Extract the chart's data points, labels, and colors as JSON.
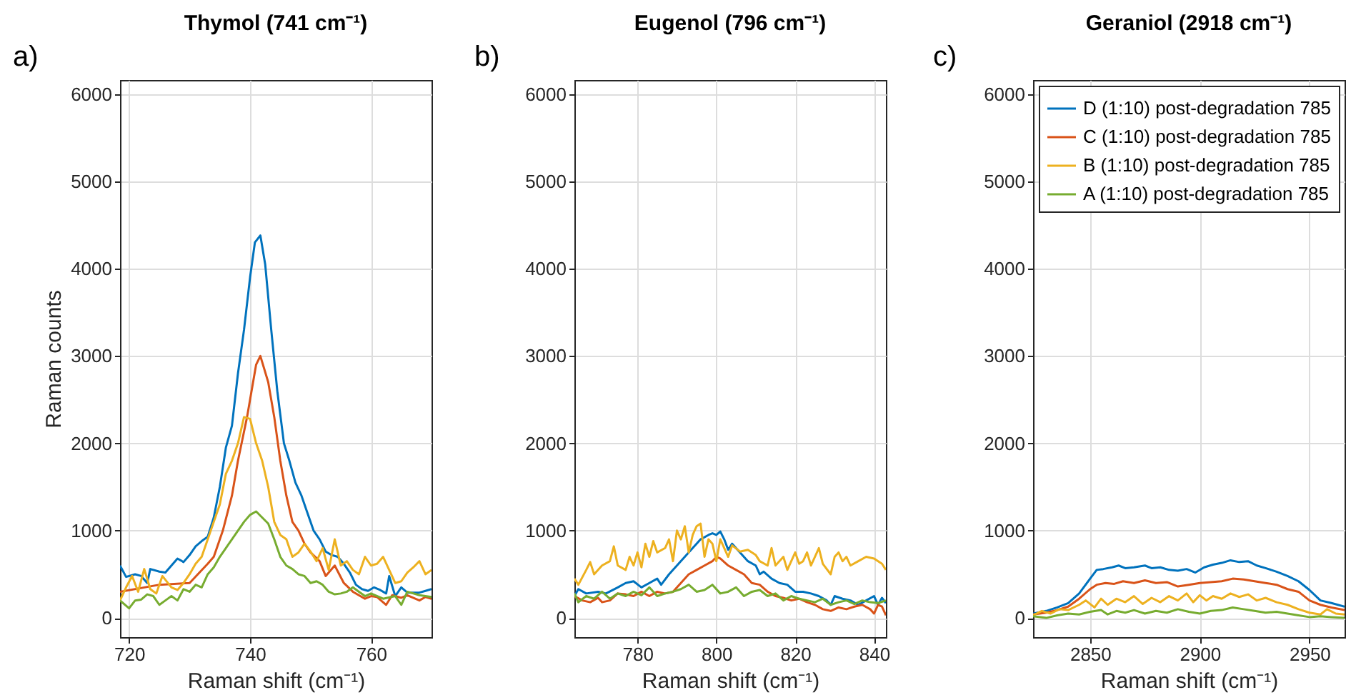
{
  "chart_data": [
    {
      "type": "line",
      "title": "Thymol (741 cm⁻¹)",
      "xlabel": "Raman shift (cm⁻¹)",
      "ylabel": "Raman counts",
      "annotations": [
        "a)"
      ],
      "xlim": [
        718.5,
        770
      ],
      "ylim": [
        -220,
        6160
      ],
      "xticks": [
        720,
        740,
        760
      ],
      "yticks": [
        0,
        1000,
        2000,
        3000,
        4000,
        5000,
        6000
      ],
      "grid": true,
      "series": [
        {
          "color": "#0072bd",
          "x": [
            718.5,
            719.5,
            721,
            722,
            723,
            723.5,
            725,
            726,
            727,
            728,
            729,
            730,
            731,
            732,
            733,
            734,
            735,
            736,
            737,
            738,
            739,
            740,
            740.8,
            741.7,
            742.5,
            743.5,
            744.5,
            745.6,
            746.5,
            747.5,
            748.5,
            749.5,
            750.5,
            751.5,
            752.5,
            753.5,
            754.5,
            755.5,
            756.5,
            757.5,
            758.5,
            759.5,
            760.5,
            761.5,
            762.5,
            763,
            764,
            765,
            766,
            768,
            769,
            770
          ],
          "values": [
            600,
            470,
            500,
            480,
            400,
            560,
            530,
            520,
            600,
            680,
            640,
            720,
            820,
            880,
            930,
            1150,
            1500,
            1950,
            2200,
            2800,
            3300,
            3900,
            4300,
            4380,
            4050,
            3300,
            2600,
            2000,
            1800,
            1550,
            1400,
            1200,
            1000,
            900,
            760,
            720,
            700,
            620,
            520,
            380,
            330,
            310,
            350,
            320,
            280,
            480,
            250,
            350,
            290,
            290,
            310,
            330
          ]
        },
        {
          "color": "#d95319",
          "x": [
            718.5,
            725,
            730,
            733,
            734,
            735.5,
            737,
            738,
            739.5,
            741,
            741.7,
            743,
            744,
            745,
            746,
            747,
            748,
            749,
            750,
            751.5,
            752.5,
            754,
            755.5,
            757,
            759,
            760,
            761,
            762.5,
            763.5,
            765,
            766,
            768,
            769,
            770
          ],
          "values": [
            300,
            380,
            400,
            620,
            700,
            1000,
            1400,
            1800,
            2300,
            2900,
            3000,
            2700,
            2300,
            1800,
            1400,
            1100,
            1000,
            850,
            750,
            650,
            480,
            600,
            400,
            300,
            220,
            250,
            240,
            150,
            260,
            230,
            260,
            200,
            240,
            220
          ]
        },
        {
          "color": "#edb120",
          "x": [
            718.5,
            719.5,
            720.5,
            721.5,
            722.5,
            723.5,
            724.5,
            725.5,
            727,
            728,
            729,
            730,
            731,
            732,
            733,
            734,
            735,
            736,
            737,
            738,
            739,
            740,
            741,
            742,
            743,
            744,
            745,
            746,
            747,
            748,
            749,
            750,
            751,
            752,
            753,
            754,
            755,
            756,
            757,
            758,
            759,
            760,
            761,
            762,
            763,
            764,
            765,
            766,
            767,
            768,
            769,
            770
          ],
          "values": [
            200,
            350,
            480,
            300,
            560,
            330,
            280,
            480,
            350,
            320,
            400,
            500,
            620,
            700,
            900,
            1100,
            1300,
            1650,
            1800,
            2000,
            2300,
            2280,
            2000,
            1800,
            1500,
            1100,
            950,
            900,
            700,
            750,
            850,
            760,
            650,
            800,
            550,
            900,
            600,
            650,
            550,
            500,
            700,
            600,
            620,
            700,
            550,
            400,
            420,
            520,
            580,
            650,
            500,
            550
          ]
        },
        {
          "color": "#77ac30",
          "x": [
            718.5,
            720,
            721,
            722,
            723,
            724,
            725,
            726,
            727,
            728,
            729,
            730,
            731,
            732,
            733,
            734,
            735,
            736,
            737,
            738,
            739,
            740,
            741,
            742,
            743,
            744,
            745,
            746,
            747,
            748,
            749,
            750,
            751,
            752,
            753,
            754,
            755,
            756,
            757,
            758,
            759,
            760,
            762,
            764,
            765,
            766,
            768,
            770
          ],
          "values": [
            200,
            110,
            200,
            210,
            270,
            250,
            150,
            200,
            250,
            200,
            330,
            300,
            380,
            350,
            500,
            580,
            700,
            800,
            900,
            1000,
            1100,
            1180,
            1220,
            1150,
            1080,
            900,
            700,
            600,
            560,
            500,
            480,
            400,
            420,
            380,
            300,
            270,
            280,
            300,
            350,
            300,
            250,
            280,
            220,
            250,
            150,
            300,
            260,
            240
          ]
        }
      ]
    },
    {
      "type": "line",
      "title": "Eugenol (796 cm⁻¹)",
      "xlabel": "Raman shift (cm⁻¹)",
      "annotations": [
        "b)"
      ],
      "xlim": [
        764,
        843
      ],
      "ylim": [
        -220,
        6160
      ],
      "xticks": [
        780,
        800,
        820,
        840
      ],
      "yticks": [
        0,
        1000,
        2000,
        3000,
        4000,
        5000,
        6000
      ],
      "grid": true,
      "series": [
        {
          "color": "#0072bd",
          "x": [
            764,
            765,
            767,
            770,
            772,
            775,
            777,
            779,
            781,
            783,
            785,
            786,
            788,
            790,
            792,
            794,
            796,
            798,
            799,
            800,
            801,
            802,
            803,
            804,
            806,
            808,
            810,
            811,
            812,
            814,
            816,
            818,
            820,
            822,
            824,
            826,
            828,
            829,
            830,
            832,
            834,
            836,
            838,
            840,
            841,
            842,
            843
          ],
          "values": [
            250,
            330,
            280,
            300,
            280,
            350,
            400,
            420,
            350,
            400,
            450,
            380,
            500,
            600,
            700,
            800,
            900,
            950,
            970,
            950,
            990,
            900,
            780,
            850,
            750,
            650,
            600,
            500,
            530,
            450,
            400,
            380,
            300,
            300,
            280,
            250,
            200,
            150,
            250,
            220,
            200,
            150,
            200,
            250,
            150,
            230,
            170
          ]
        },
        {
          "color": "#d95319",
          "x": [
            764,
            766,
            768,
            770,
            771,
            773,
            775,
            777,
            779,
            781,
            783,
            785,
            787,
            789,
            791,
            793,
            795,
            797,
            799,
            800,
            801,
            803,
            805,
            807,
            809,
            811,
            813,
            815,
            817,
            819,
            821,
            823,
            825,
            827,
            829,
            831,
            833,
            835,
            837,
            839,
            840,
            841,
            842,
            843
          ],
          "values": [
            250,
            200,
            180,
            230,
            180,
            200,
            280,
            270,
            250,
            300,
            250,
            300,
            280,
            300,
            400,
            500,
            550,
            600,
            650,
            700,
            680,
            600,
            550,
            500,
            400,
            380,
            300,
            250,
            230,
            200,
            220,
            180,
            150,
            100,
            80,
            120,
            100,
            130,
            150,
            100,
            50,
            150,
            130,
            30
          ]
        },
        {
          "color": "#edb120",
          "x": [
            764,
            765,
            767,
            768,
            769,
            771,
            773,
            774,
            775,
            777,
            778,
            779,
            780,
            781,
            782,
            783,
            784,
            785,
            787,
            788,
            789,
            790,
            791,
            792,
            793,
            794,
            795,
            796,
            797,
            798,
            799,
            800,
            801,
            802,
            803,
            804,
            806,
            808,
            810,
            811,
            813,
            814,
            815,
            817,
            818,
            820,
            821,
            822,
            823,
            824,
            826,
            827,
            829,
            830,
            831,
            832,
            833,
            834,
            836,
            838,
            840,
            842,
            843
          ],
          "values": [
            450,
            380,
            550,
            640,
            500,
            600,
            650,
            820,
            600,
            550,
            700,
            600,
            750,
            580,
            850,
            700,
            880,
            750,
            800,
            900,
            650,
            1000,
            900,
            1050,
            750,
            950,
            1050,
            1080,
            700,
            900,
            850,
            650,
            900,
            800,
            700,
            830,
            760,
            780,
            720,
            650,
            600,
            800,
            600,
            700,
            550,
            750,
            620,
            650,
            750,
            600,
            800,
            620,
            500,
            700,
            750,
            650,
            700,
            600,
            650,
            700,
            680,
            620,
            550
          ]
        },
        {
          "color": "#77ac30",
          "x": [
            764,
            765,
            767,
            769,
            771,
            773,
            775,
            777,
            779,
            781,
            783,
            785,
            787,
            789,
            791,
            793,
            795,
            797,
            799,
            801,
            803,
            805,
            807,
            809,
            811,
            813,
            815,
            817,
            819,
            821,
            823,
            825,
            827,
            829,
            831,
            833,
            835,
            837,
            839,
            841,
            843
          ],
          "values": [
            280,
            180,
            250,
            220,
            300,
            220,
            280,
            250,
            300,
            260,
            350,
            250,
            280,
            300,
            330,
            380,
            300,
            320,
            380,
            280,
            300,
            350,
            250,
            300,
            320,
            250,
            280,
            200,
            250,
            220,
            200,
            180,
            220,
            150,
            180,
            200,
            160,
            200,
            180,
            170,
            200
          ]
        }
      ]
    },
    {
      "type": "line",
      "title": "Geraniol (2918 cm⁻¹)",
      "xlabel": "Raman shift (cm⁻¹)",
      "annotations": [
        "c)"
      ],
      "xlim": [
        2824,
        2966
      ],
      "ylim": [
        -220,
        6160
      ],
      "xticks": [
        2850,
        2900,
        2950
      ],
      "yticks": [
        0,
        1000,
        2000,
        3000,
        4000,
        5000,
        6000
      ],
      "grid": true,
      "legend": "top right",
      "series": [
        {
          "name": "D (1:10) post-degradation 785",
          "color": "#0072bd",
          "x": [
            2824,
            2830,
            2835,
            2840,
            2845,
            2850,
            2853,
            2856,
            2860,
            2863,
            2866,
            2870,
            2875,
            2878,
            2882,
            2886,
            2890,
            2894,
            2898,
            2902,
            2906,
            2910,
            2914,
            2918,
            2922,
            2926,
            2930,
            2935,
            2940,
            2945,
            2950,
            2955,
            2960,
            2966
          ],
          "values": [
            50,
            80,
            120,
            170,
            280,
            450,
            550,
            560,
            580,
            600,
            570,
            580,
            600,
            570,
            580,
            550,
            540,
            560,
            520,
            580,
            610,
            630,
            660,
            640,
            650,
            600,
            570,
            530,
            480,
            420,
            320,
            200,
            170,
            130
          ]
        },
        {
          "name": "C (1:10) post-degradation 785",
          "color": "#d95319",
          "x": [
            2824,
            2830,
            2835,
            2840,
            2845,
            2850,
            2853,
            2857,
            2861,
            2865,
            2870,
            2875,
            2880,
            2885,
            2890,
            2895,
            2900,
            2905,
            2910,
            2915,
            2920,
            2925,
            2930,
            2935,
            2940,
            2945,
            2950,
            2955,
            2960,
            2966
          ],
          "values": [
            40,
            60,
            90,
            130,
            220,
            330,
            380,
            400,
            390,
            420,
            400,
            430,
            400,
            410,
            360,
            380,
            400,
            410,
            420,
            450,
            440,
            420,
            400,
            380,
            330,
            300,
            200,
            150,
            120,
            90
          ]
        },
        {
          "name": "B (1:10) post-degradation 785",
          "color": "#edb120",
          "x": [
            2824,
            2828,
            2832,
            2836,
            2840,
            2845,
            2848,
            2852,
            2855,
            2858,
            2862,
            2866,
            2870,
            2874,
            2878,
            2882,
            2886,
            2890,
            2894,
            2897,
            2900,
            2903,
            2906,
            2910,
            2914,
            2918,
            2922,
            2926,
            2930,
            2935,
            2940,
            2945,
            2950,
            2955,
            2958,
            2962,
            2966
          ],
          "values": [
            30,
            80,
            50,
            100,
            90,
            150,
            200,
            120,
            220,
            150,
            220,
            180,
            250,
            160,
            230,
            180,
            250,
            200,
            280,
            180,
            260,
            200,
            250,
            220,
            280,
            240,
            270,
            200,
            230,
            180,
            150,
            100,
            60,
            40,
            100,
            50,
            40
          ]
        },
        {
          "name": "A (1:10) post-degradation 785",
          "color": "#77ac30",
          "x": [
            2824,
            2830,
            2835,
            2840,
            2845,
            2850,
            2855,
            2858,
            2862,
            2866,
            2870,
            2875,
            2880,
            2885,
            2890,
            2895,
            2900,
            2905,
            2910,
            2915,
            2920,
            2925,
            2930,
            2935,
            2940,
            2945,
            2950,
            2955,
            2960,
            2966
          ],
          "values": [
            20,
            0,
            30,
            50,
            40,
            70,
            90,
            40,
            80,
            60,
            90,
            50,
            80,
            60,
            100,
            70,
            50,
            80,
            90,
            120,
            100,
            80,
            60,
            70,
            50,
            30,
            10,
            20,
            10,
            0
          ]
        }
      ]
    }
  ]
}
